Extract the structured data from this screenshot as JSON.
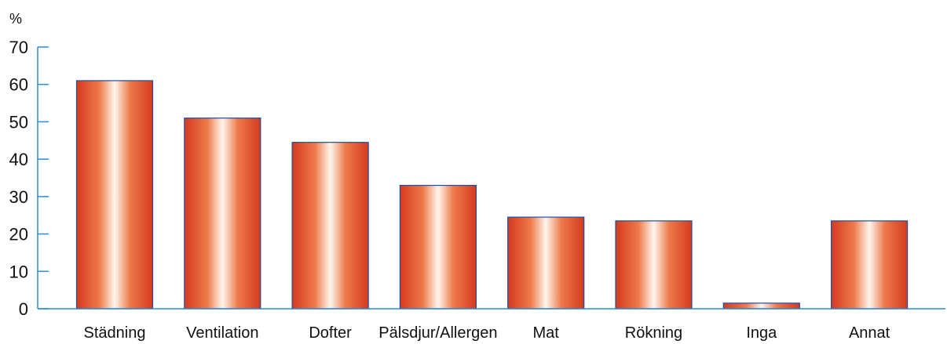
{
  "chart_data": {
    "type": "bar",
    "unit_label": "%",
    "categories": [
      "Städning",
      "Ventilation",
      "Dofter",
      "Pälsdjur/Allergen",
      "Mat",
      "Rökning",
      "Inga",
      "Annat"
    ],
    "values": [
      61,
      51,
      44.5,
      33,
      24.5,
      23.5,
      1.5,
      23.5
    ],
    "ylim": [
      0,
      70
    ],
    "yticks": [
      0,
      10,
      20,
      30,
      40,
      50,
      60,
      70
    ],
    "title": "",
    "xlabel": "",
    "ylabel": "",
    "grid": false,
    "colors": {
      "bar_edge": "#d43a1f",
      "bar_mid": "#ee7a4a",
      "bar_highlight": "#fff6ee",
      "bar_outline": "#1f4fa0",
      "axis": "#2a8bd6"
    }
  }
}
